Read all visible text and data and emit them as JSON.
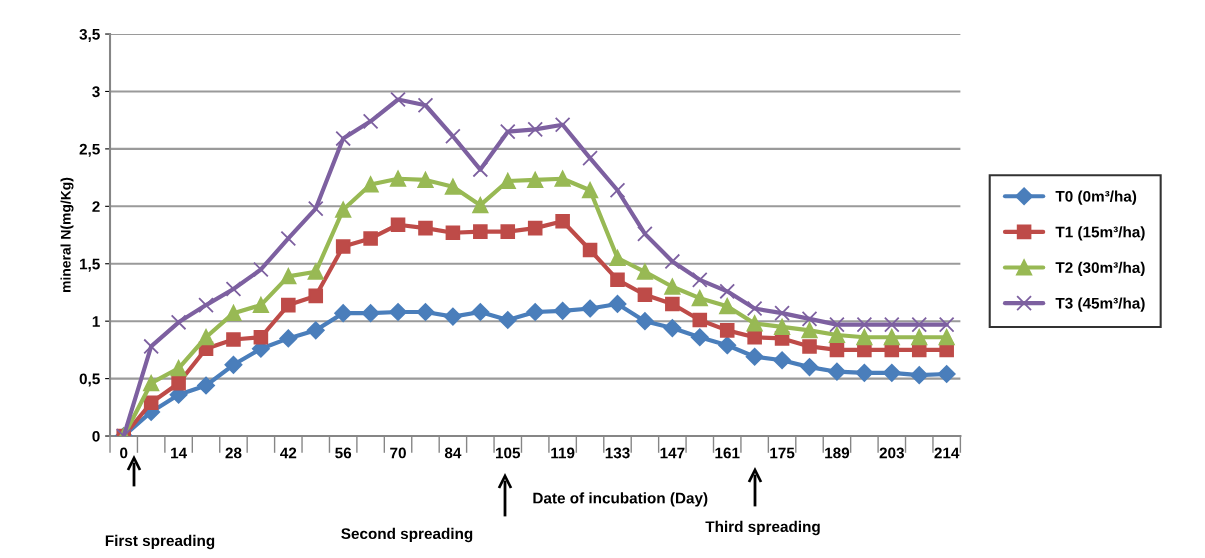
{
  "chart_data": {
    "type": "line",
    "xlabel": "Date of incubation (Day)",
    "ylabel": "mineral N(mg/Kg)",
    "categories": [
      "0",
      null,
      "14",
      null,
      "28",
      null,
      "42",
      null,
      "56",
      null,
      "70",
      null,
      "84",
      null,
      "105",
      null,
      "119",
      null,
      "133",
      null,
      "147",
      null,
      "161",
      null,
      "175",
      null,
      "189",
      null,
      "203",
      null,
      "214"
    ],
    "ylim": [
      0,
      3.5
    ],
    "yticks": [
      0,
      {
        "value": 0.5,
        "label": "0,5"
      },
      1,
      {
        "value": 1.5,
        "label": "1,5"
      },
      2,
      {
        "value": 2.5,
        "label": "2,5"
      },
      3,
      {
        "value": 3.5,
        "label": "3,5"
      }
    ],
    "grid": "y",
    "legend": "right",
    "line_style": "solid",
    "series": [
      {
        "name": "T0 (0m³/ha)",
        "color": "#4a7ebb",
        "marker": "diamond",
        "values": [
          0,
          0.21,
          0.36,
          0.44,
          0.62,
          0.76,
          0.85,
          0.92,
          1.07,
          1.07,
          1.08,
          1.08,
          1.04,
          1.08,
          1.01,
          1.08,
          1.09,
          1.11,
          1.15,
          1.0,
          0.94,
          0.86,
          0.79,
          0.69,
          0.66,
          0.6,
          0.56,
          0.55,
          0.55,
          0.53,
          0.54
        ]
      },
      {
        "name": "T1 (15m³/ha)",
        "color": "#be4b48",
        "marker": "square",
        "values": [
          0,
          0.29,
          0.46,
          0.76,
          0.84,
          0.86,
          1.14,
          1.22,
          1.65,
          1.72,
          1.84,
          1.81,
          1.77,
          1.78,
          1.78,
          1.81,
          1.87,
          1.62,
          1.36,
          1.23,
          1.15,
          1.01,
          0.92,
          0.86,
          0.85,
          0.78,
          0.75,
          0.75,
          0.75,
          0.75,
          0.75
        ]
      },
      {
        "name": "T2 (30m³/ha)",
        "color": "#98b954",
        "marker": "triangle",
        "values": [
          0,
          0.46,
          0.59,
          0.86,
          1.07,
          1.14,
          1.39,
          1.43,
          1.97,
          2.19,
          2.24,
          2.23,
          2.17,
          2.01,
          2.22,
          2.23,
          2.24,
          2.14,
          1.55,
          1.43,
          1.3,
          1.2,
          1.13,
          0.98,
          0.95,
          0.92,
          0.88,
          0.86,
          0.86,
          0.86,
          0.86
        ]
      },
      {
        "name": "T3 (45m³/ha)",
        "color": "#7d60a0",
        "marker": "cross",
        "values": [
          0,
          0.78,
          0.99,
          1.14,
          1.28,
          1.45,
          1.72,
          1.98,
          2.59,
          2.74,
          2.93,
          2.88,
          2.61,
          2.32,
          2.65,
          2.67,
          2.71,
          2.42,
          2.14,
          1.76,
          1.52,
          1.36,
          1.26,
          1.11,
          1.07,
          1.02,
          0.97,
          0.97,
          0.97,
          0.97,
          0.97
        ]
      }
    ],
    "annotations": [
      "First spreading",
      "Second spreading",
      "Third spreading"
    ]
  }
}
